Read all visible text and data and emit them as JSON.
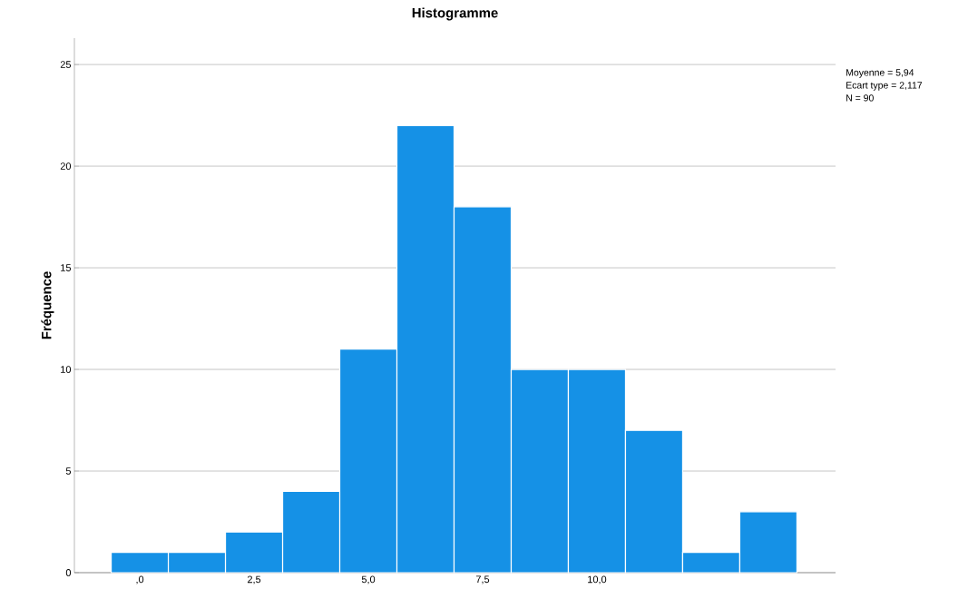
{
  "chart_data": {
    "type": "histogram",
    "title": "Histogramme",
    "ylabel": "Fréquence",
    "bins": [
      -0.625,
      0.625,
      1.875,
      3.125,
      4.375,
      5.625,
      6.875,
      8.125,
      9.375,
      10.625,
      11.875,
      13.125,
      14.375
    ],
    "values": [
      1,
      1,
      2,
      4,
      11,
      22,
      18,
      10,
      10,
      7,
      1,
      3
    ],
    "color": "#1591e6",
    "xlim": [
      -1.43,
      15.22
    ],
    "ylim": [
      0,
      26.3
    ],
    "xticks": [
      {
        "value": 0,
        "label": ",0"
      },
      {
        "value": 2.5,
        "label": "2,5"
      },
      {
        "value": 5,
        "label": "5,0"
      },
      {
        "value": 7.5,
        "label": "7,5"
      },
      {
        "value": 10,
        "label": "10,0"
      }
    ],
    "yticks": [
      0,
      5,
      10,
      15,
      20,
      25
    ],
    "grid": "y",
    "annotations": [
      "Moyenne = 5,94",
      "Ecart type = 2,117",
      "N = 90"
    ]
  }
}
